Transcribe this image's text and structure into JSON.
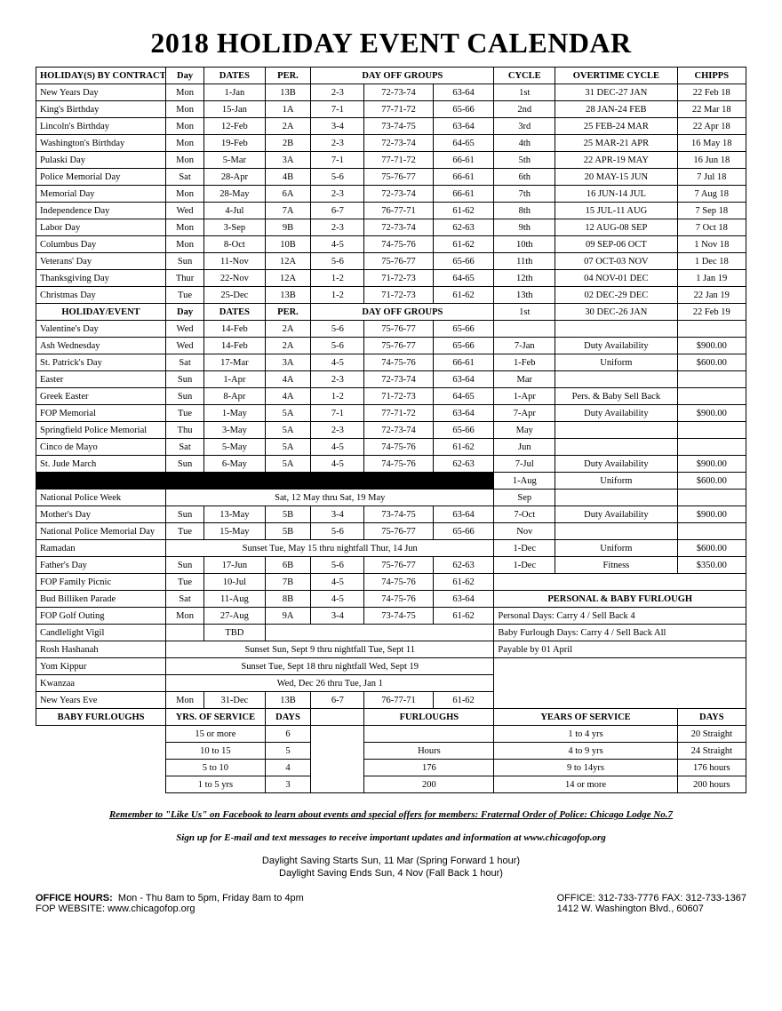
{
  "title": "2018 HOLIDAY EVENT CALENDAR",
  "headers1": {
    "h1": "HOLIDAY(S) BY CONTRACT",
    "h2": "Day",
    "h3": "DATES",
    "h4": "PER.",
    "h5": "DAY OFF GROUPS",
    "h6": "CYCLE",
    "h7": "OVERTIME CYCLE",
    "h8": "CHIPPS"
  },
  "contract": [
    {
      "n": "New Years Day",
      "d": "Mon",
      "dt": "1-Jan",
      "p": "13B",
      "g1": "2-3",
      "g2": "72-73-74",
      "g3": "63-64",
      "cy": "1st",
      "ot": "31 DEC-27 JAN",
      "ch": "22 Feb 18"
    },
    {
      "n": "King's Birthday",
      "d": "Mon",
      "dt": "15-Jan",
      "p": "1A",
      "g1": "7-1",
      "g2": "77-71-72",
      "g3": "65-66",
      "cy": "2nd",
      "ot": "28 JAN-24 FEB",
      "ch": "22 Mar 18"
    },
    {
      "n": "Lincoln's Birthday",
      "d": "Mon",
      "dt": "12-Feb",
      "p": "2A",
      "g1": "3-4",
      "g2": "73-74-75",
      "g3": "63-64",
      "cy": "3rd",
      "ot": "25 FEB-24 MAR",
      "ch": "22 Apr 18"
    },
    {
      "n": "Washington's Birthday",
      "d": "Mon",
      "dt": "19-Feb",
      "p": "2B",
      "g1": "2-3",
      "g2": "72-73-74",
      "g3": "64-65",
      "cy": "4th",
      "ot": "25 MAR-21 APR",
      "ch": "16 May 18"
    },
    {
      "n": "Pulaski Day",
      "d": "Mon",
      "dt": "5-Mar",
      "p": "3A",
      "g1": "7-1",
      "g2": "77-71-72",
      "g3": "66-61",
      "cy": "5th",
      "ot": "22 APR-19 MAY",
      "ch": "16 Jun 18"
    },
    {
      "n": "Police Memorial Day",
      "d": "Sat",
      "dt": "28-Apr",
      "p": "4B",
      "g1": "5-6",
      "g2": "75-76-77",
      "g3": "66-61",
      "cy": "6th",
      "ot": "20 MAY-15 JUN",
      "ch": "7 Jul 18"
    },
    {
      "n": "Memorial Day",
      "d": "Mon",
      "dt": "28-May",
      "p": "6A",
      "g1": "2-3",
      "g2": "72-73-74",
      "g3": "66-61",
      "cy": "7th",
      "ot": "16 JUN-14 JUL",
      "ch": "7 Aug 18"
    },
    {
      "n": "Independence Day",
      "d": "Wed",
      "dt": "4-Jul",
      "p": "7A",
      "g1": "6-7",
      "g2": "76-77-71",
      "g3": "61-62",
      "cy": "8th",
      "ot": "15 JUL-11 AUG",
      "ch": "7 Sep 18"
    },
    {
      "n": "Labor Day",
      "d": "Mon",
      "dt": "3-Sep",
      "p": "9B",
      "g1": "2-3",
      "g2": "72-73-74",
      "g3": "62-63",
      "cy": "9th",
      "ot": "12 AUG-08 SEP",
      "ch": "7 Oct 18"
    },
    {
      "n": "Columbus Day",
      "d": "Mon",
      "dt": "8-Oct",
      "p": "10B",
      "g1": "4-5",
      "g2": "74-75-76",
      "g3": "61-62",
      "cy": "10th",
      "ot": "09 SEP-06 OCT",
      "ch": "1 Nov 18"
    },
    {
      "n": "Veterans' Day",
      "d": "Sun",
      "dt": "11-Nov",
      "p": "12A",
      "g1": "5-6",
      "g2": "75-76-77",
      "g3": "65-66",
      "cy": "11th",
      "ot": "07 OCT-03 NOV",
      "ch": "1 Dec 18"
    },
    {
      "n": "Thanksgiving Day",
      "d": "Thur",
      "dt": "22-Nov",
      "p": "12A",
      "g1": "1-2",
      "g2": "71-72-73",
      "g3": "64-65",
      "cy": "12th",
      "ot": "04 NOV-01 DEC",
      "ch": "1 Jan 19"
    },
    {
      "n": "Christmas Day",
      "d": "Tue",
      "dt": "25-Dec",
      "p": "13B",
      "g1": "1-2",
      "g2": "71-72-73",
      "g3": "61-62",
      "cy": "13th",
      "ot": "02 DEC-29 DEC",
      "ch": "22 Jan 19"
    }
  ],
  "headers2": {
    "h1": "HOLIDAY/EVENT",
    "h2": "Day",
    "h3": "DATES",
    "h4": "PER.",
    "h5": "DAY OFF GROUPS"
  },
  "extra_first": {
    "cy": "1st",
    "ot": "30 DEC-26 JAN",
    "ch": "22 Feb 19"
  },
  "events": [
    {
      "n": "Valentine's Day",
      "d": "Wed",
      "dt": "14-Feb",
      "p": "2A",
      "g1": "5-6",
      "g2": "75-76-77",
      "g3": "65-66",
      "cy": "",
      "ot": "",
      "ch": ""
    },
    {
      "n": "Ash Wednesday",
      "d": "Wed",
      "dt": "14-Feb",
      "p": "2A",
      "g1": "5-6",
      "g2": "75-76-77",
      "g3": "65-66",
      "cy": "7-Jan",
      "ot": "Duty Availability",
      "ch": "$900.00"
    },
    {
      "n": "St. Patrick's Day",
      "d": "Sat",
      "dt": "17-Mar",
      "p": "3A",
      "g1": "4-5",
      "g2": "74-75-76",
      "g3": "66-61",
      "cy": "1-Feb",
      "ot": "Uniform",
      "ch": "$600.00"
    },
    {
      "n": "Easter",
      "d": "Sun",
      "dt": "1-Apr",
      "p": "4A",
      "g1": "2-3",
      "g2": "72-73-74",
      "g3": "63-64",
      "cy": "Mar",
      "ot": "",
      "ch": ""
    },
    {
      "n": "Greek Easter",
      "d": "Sun",
      "dt": "8-Apr",
      "p": "4A",
      "g1": "1-2",
      "g2": "71-72-73",
      "g3": "64-65",
      "cy": "1-Apr",
      "ot": "Pers. & Baby Sell Back",
      "ch": ""
    },
    {
      "n": "FOP Memorial",
      "d": "Tue",
      "dt": "1-May",
      "p": "5A",
      "g1": "7-1",
      "g2": "77-71-72",
      "g3": "63-64",
      "cy": "7-Apr",
      "ot": "Duty Availability",
      "ch": "$900.00"
    },
    {
      "n": "Springfield Police Memorial",
      "d": "Thu",
      "dt": "3-May",
      "p": "5A",
      "g1": "2-3",
      "g2": "72-73-74",
      "g3": "65-66",
      "cy": "May",
      "ot": "",
      "ch": ""
    },
    {
      "n": "Cinco de Mayo",
      "d": "Sat",
      "dt": "5-May",
      "p": "5A",
      "g1": "4-5",
      "g2": "74-75-76",
      "g3": "61-62",
      "cy": "Jun",
      "ot": "",
      "ch": ""
    },
    {
      "n": "St. Jude March",
      "d": "Sun",
      "dt": "6-May",
      "p": "5A",
      "g1": "4-5",
      "g2": "74-75-76",
      "g3": "62-63",
      "cy": "7-Jul",
      "ot": "Duty Availability",
      "ch": "$900.00"
    }
  ],
  "blackrow_side": {
    "cy": "1-Aug",
    "ot": "Uniform",
    "ch": "$600.00"
  },
  "npw": {
    "n": "National Police Week",
    "span": "Sat, 12 May thru Sat, 19 May",
    "cy": "Sep",
    "ot": "",
    "ch": ""
  },
  "events2": [
    {
      "n": "Mother's Day",
      "d": "Sun",
      "dt": "13-May",
      "p": "5B",
      "g1": "3-4",
      "g2": "73-74-75",
      "g3": "63-64",
      "cy": "7-Oct",
      "ot": "Duty Availability",
      "ch": "$900.00"
    },
    {
      "n": "National Police Memorial Day",
      "d": "Tue",
      "dt": "15-May",
      "p": "5B",
      "g1": "5-6",
      "g2": "75-76-77",
      "g3": "65-66",
      "cy": "Nov",
      "ot": "",
      "ch": ""
    }
  ],
  "ramadan": {
    "n": "Ramadan",
    "span": "Sunset Tue, May 15 thru nightfall Thur, 14 Jun",
    "cy": "1-Dec",
    "ot": "Uniform",
    "ch": "$600.00"
  },
  "fathers": {
    "n": "Father's Day",
    "d": "Sun",
    "dt": "17-Jun",
    "p": "6B",
    "g1": "5-6",
    "g2": "75-76-77",
    "g3": "62-63",
    "cy": "1-Dec",
    "ot": "Fitness",
    "ch": "$350.00"
  },
  "events3": [
    {
      "n": "FOP Family Picnic",
      "d": "Tue",
      "dt": "10-Jul",
      "p": "7B",
      "g1": "4-5",
      "g2": "74-75-76",
      "g3": "61-62"
    },
    {
      "n": "Bud Billiken Parade",
      "d": "Sat",
      "dt": "11-Aug",
      "p": "8B",
      "g1": "4-5",
      "g2": "74-75-76",
      "g3": "63-64"
    },
    {
      "n": "FOP Golf Outing",
      "d": "Mon",
      "dt": "27-Aug",
      "p": "9A",
      "g1": "3-4",
      "g2": "73-74-75",
      "g3": "61-62"
    }
  ],
  "pbf_header": "PERSONAL & BABY FURLOUGH",
  "pbf_lines": {
    "l1": "Personal Days: Carry 4 / Sell Back 4",
    "l2": "Baby Furlough Days: Carry 4 / Sell Back All",
    "l3": "Payable by 01 April"
  },
  "candle": {
    "n": "Candlelight Vigil",
    "dt": "TBD"
  },
  "rosh": {
    "n": "Rosh Hashanah",
    "span": "Sunset Sun, Sept 9 thru nightfall Tue, Sept 11"
  },
  "yom": {
    "n": "Yom Kippur",
    "span": "Sunset Tue, Sept 18 thru nightfall Wed, Sept 19"
  },
  "kwanzaa": {
    "n": "Kwanzaa",
    "span": "Wed, Dec 26 thru Tue, Jan 1"
  },
  "nye": {
    "n": "New Years Eve",
    "d": "Mon",
    "dt": "31-Dec",
    "p": "13B",
    "g1": "6-7",
    "g2": "76-77-71",
    "g3": "61-62"
  },
  "furloughs": {
    "hdr_bf": "BABY FURLOUGHS",
    "hdr_yos": "YRS. OF SERVICE",
    "hdr_days": "DAYS",
    "hdr_fur": "FURLOUGHS",
    "hdr_yos2": "YEARS OF SERVICE",
    "hdr_days2": "DAYS",
    "rows": [
      {
        "y": "15 or more",
        "d": "6",
        "h": "",
        "y2": "1 to 4 yrs",
        "d2": "20 Straight"
      },
      {
        "y": "10 to 15",
        "d": "5",
        "h": "Hours",
        "y2": "4 to 9 yrs",
        "d2": "24 Straight"
      },
      {
        "y": "5 to 10",
        "d": "4",
        "h": "176",
        "y2": "9 to 14yrs",
        "d2": "176 hours"
      },
      {
        "y": "1 to 5 yrs",
        "d": "3",
        "h": "200",
        "y2": "14 or more",
        "d2": "200 hours"
      }
    ]
  },
  "footer": {
    "fb": "Remember to \"Like Us\" on Facebook to learn about events and special offers for members: Fraternal Order of Police: Chicago Lodge No.7",
    "signup": "Sign up for E-mail and text messages to receive important updates and information at www.chicagofop.org",
    "dst1": "Daylight Saving Starts Sun, 11 Mar (Spring Forward 1 hour)",
    "dst2": "Daylight Saving Ends Sun, 4 Nov (Fall Back 1 hour)",
    "hours_label": "OFFICE HOURS:",
    "hours": "Mon - Thu 8am to 5pm,  Friday 8am to 4pm",
    "web_label": "FOP WEBSITE:",
    "web": "www.chicagofop.org",
    "phone": "OFFICE: 312-733-7776  FAX: 312-733-1367",
    "addr": "1412 W. Washington Blvd., 60607"
  }
}
